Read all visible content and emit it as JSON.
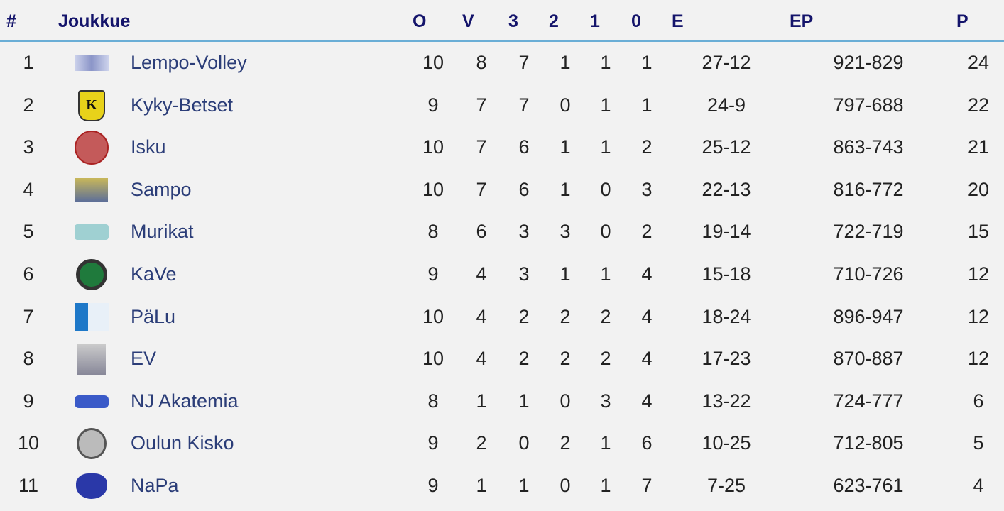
{
  "headers": {
    "rank": "#",
    "team": "Joukkue",
    "o": "O",
    "v": "V",
    "w3": "3",
    "w2": "2",
    "l1": "1",
    "l0": "0",
    "e": "E",
    "ep": "EP",
    "p": "P"
  },
  "colors": {
    "header_text": "#14146b",
    "team_text": "#2b3d78",
    "header_rule": "#6aaed6",
    "background": "#f2f2f2"
  },
  "rows": [
    {
      "rank": "1",
      "team": "Lempo-Volley",
      "logo": "lempo-volley-logo",
      "o": "10",
      "v": "8",
      "w3": "7",
      "w2": "1",
      "l1": "1",
      "l0": "1",
      "e": "27-12",
      "ep": "921-829",
      "p": "24"
    },
    {
      "rank": "2",
      "team": "Kyky-Betset",
      "logo": "kyky-betset-logo",
      "o": "9",
      "v": "7",
      "w3": "7",
      "w2": "0",
      "l1": "1",
      "l0": "1",
      "e": "24-9",
      "ep": "797-688",
      "p": "22"
    },
    {
      "rank": "3",
      "team": "Isku",
      "logo": "isku-logo",
      "o": "10",
      "v": "7",
      "w3": "6",
      "w2": "1",
      "l1": "1",
      "l0": "2",
      "e": "25-12",
      "ep": "863-743",
      "p": "21"
    },
    {
      "rank": "4",
      "team": "Sampo",
      "logo": "sampo-logo",
      "o": "10",
      "v": "7",
      "w3": "6",
      "w2": "1",
      "l1": "0",
      "l0": "3",
      "e": "22-13",
      "ep": "816-772",
      "p": "20"
    },
    {
      "rank": "5",
      "team": "Murikat",
      "logo": "murikat-logo",
      "o": "8",
      "v": "6",
      "w3": "3",
      "w2": "3",
      "l1": "0",
      "l0": "2",
      "e": "19-14",
      "ep": "722-719",
      "p": "15"
    },
    {
      "rank": "6",
      "team": "KaVe",
      "logo": "kave-logo",
      "o": "9",
      "v": "4",
      "w3": "3",
      "w2": "1",
      "l1": "1",
      "l0": "4",
      "e": "15-18",
      "ep": "710-726",
      "p": "12"
    },
    {
      "rank": "7",
      "team": "PäLu",
      "logo": "palu-logo",
      "o": "10",
      "v": "4",
      "w3": "2",
      "w2": "2",
      "l1": "2",
      "l0": "4",
      "e": "18-24",
      "ep": "896-947",
      "p": "12"
    },
    {
      "rank": "8",
      "team": "EV",
      "logo": "ev-logo",
      "o": "10",
      "v": "4",
      "w3": "2",
      "w2": "2",
      "l1": "2",
      "l0": "4",
      "e": "17-23",
      "ep": "870-887",
      "p": "12"
    },
    {
      "rank": "9",
      "team": "NJ Akatemia",
      "logo": "nj-akatemia-logo",
      "o": "8",
      "v": "1",
      "w3": "1",
      "w2": "0",
      "l1": "3",
      "l0": "4",
      "e": "13-22",
      "ep": "724-777",
      "p": "6"
    },
    {
      "rank": "10",
      "team": "Oulun Kisko",
      "logo": "oulun-kisko-logo",
      "o": "9",
      "v": "2",
      "w3": "0",
      "w2": "2",
      "l1": "1",
      "l0": "6",
      "e": "10-25",
      "ep": "712-805",
      "p": "5"
    },
    {
      "rank": "11",
      "team": "NaPa",
      "logo": "napa-logo",
      "o": "9",
      "v": "1",
      "w3": "1",
      "w2": "0",
      "l1": "1",
      "l0": "7",
      "e": "7-25",
      "ep": "623-761",
      "p": "4"
    }
  ]
}
